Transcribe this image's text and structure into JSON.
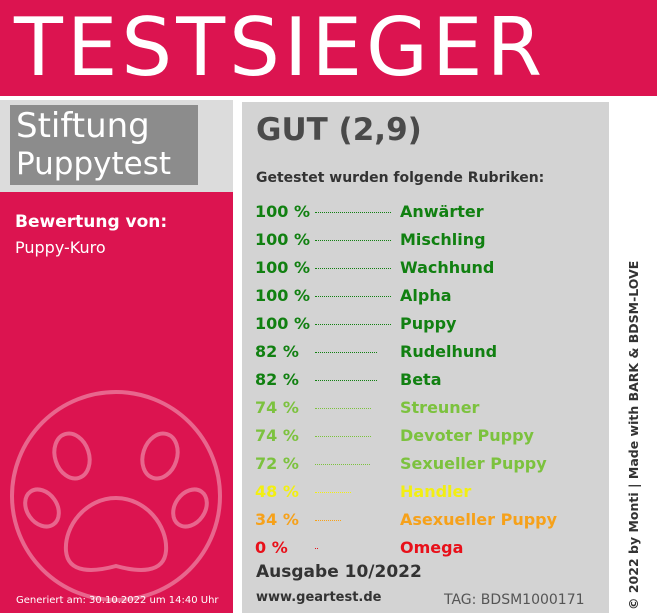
{
  "banner": {
    "title": "TESTSIEGER"
  },
  "organization": {
    "line1": "Stiftung",
    "line2": "Puppytest"
  },
  "rating": {
    "label": "Bewertung von:",
    "by": "Puppy-Kuro"
  },
  "generated": "Generiert am: 30.10.2022 um 14:40 Uhr",
  "grade": "GUT (2,9)",
  "tested_heading": "Getestet wurden folgende Rubriken:",
  "results": [
    {
      "percent": "100 %",
      "name": "Anwärter",
      "value": 100,
      "color": "#118011"
    },
    {
      "percent": "100 %",
      "name": "Mischling",
      "value": 100,
      "color": "#118011"
    },
    {
      "percent": "100 %",
      "name": "Wachhund",
      "value": 100,
      "color": "#118011"
    },
    {
      "percent": "100 %",
      "name": "Alpha",
      "value": 100,
      "color": "#118011"
    },
    {
      "percent": "100 %",
      "name": "Puppy",
      "value": 100,
      "color": "#118011"
    },
    {
      "percent": "82 %",
      "name": "Rudelhund",
      "value": 82,
      "color": "#118011"
    },
    {
      "percent": "82 %",
      "name": "Beta",
      "value": 82,
      "color": "#118011"
    },
    {
      "percent": "74 %",
      "name": "Streuner",
      "value": 74,
      "color": "#7cc23e"
    },
    {
      "percent": "74 %",
      "name": "Devoter Puppy",
      "value": 74,
      "color": "#7cc23e"
    },
    {
      "percent": "72 %",
      "name": "Sexueller Puppy",
      "value": 72,
      "color": "#7cc23e"
    },
    {
      "percent": "48 %",
      "name": "Handler",
      "value": 48,
      "color": "#f2ef12"
    },
    {
      "percent": "34 %",
      "name": "Asexueller Puppy",
      "value": 34,
      "color": "#f6a11a"
    },
    {
      "percent": "0 %",
      "name": "Omega",
      "value": 0,
      "color": "#e8101a"
    }
  ],
  "edition": "Ausgabe 10/2022",
  "website": "www.geartest.de",
  "tag": "TAG: BDSM1000171",
  "copyright": "© 2022 by Monti | Made with BARK & BDSM-LOVE",
  "icons": {
    "paw": "paw-icon"
  },
  "colors": {
    "brand_red": "#dc1450",
    "panel_gray": "#d3d3d3",
    "org_gray": "#8c8c8c"
  }
}
